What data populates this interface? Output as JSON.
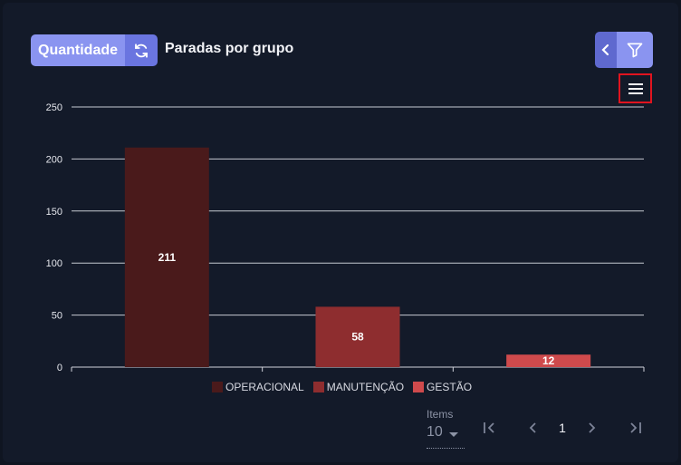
{
  "header": {
    "quantity_label": "Quantidade",
    "title": "Paradas por grupo"
  },
  "icons": {
    "refresh": "refresh-icon",
    "back": "chevron-left-icon",
    "filter": "filter-icon",
    "menu": "hamburger-menu-icon"
  },
  "colors": {
    "accent": "#8a94f0",
    "accent_dark": "#6a75e0",
    "highlight_border": "#e0141f"
  },
  "chart_data": {
    "type": "bar",
    "categories": [
      "OPERACIONAL",
      "MANUTENÇÃO",
      "GESTÃO"
    ],
    "values": [
      211,
      58,
      12
    ],
    "data_labels": [
      "211",
      "58",
      "12"
    ],
    "colors": [
      "#4a1a1b",
      "#8e2d2f",
      "#cf4a4c"
    ],
    "yticks": [
      "250",
      "200",
      "150",
      "100",
      "50",
      "0"
    ],
    "ylim": [
      0,
      250
    ],
    "grid": true,
    "legend_placement": "bottom"
  },
  "pagination": {
    "items_label": "Items",
    "page_size": "10",
    "current_page": "1"
  }
}
